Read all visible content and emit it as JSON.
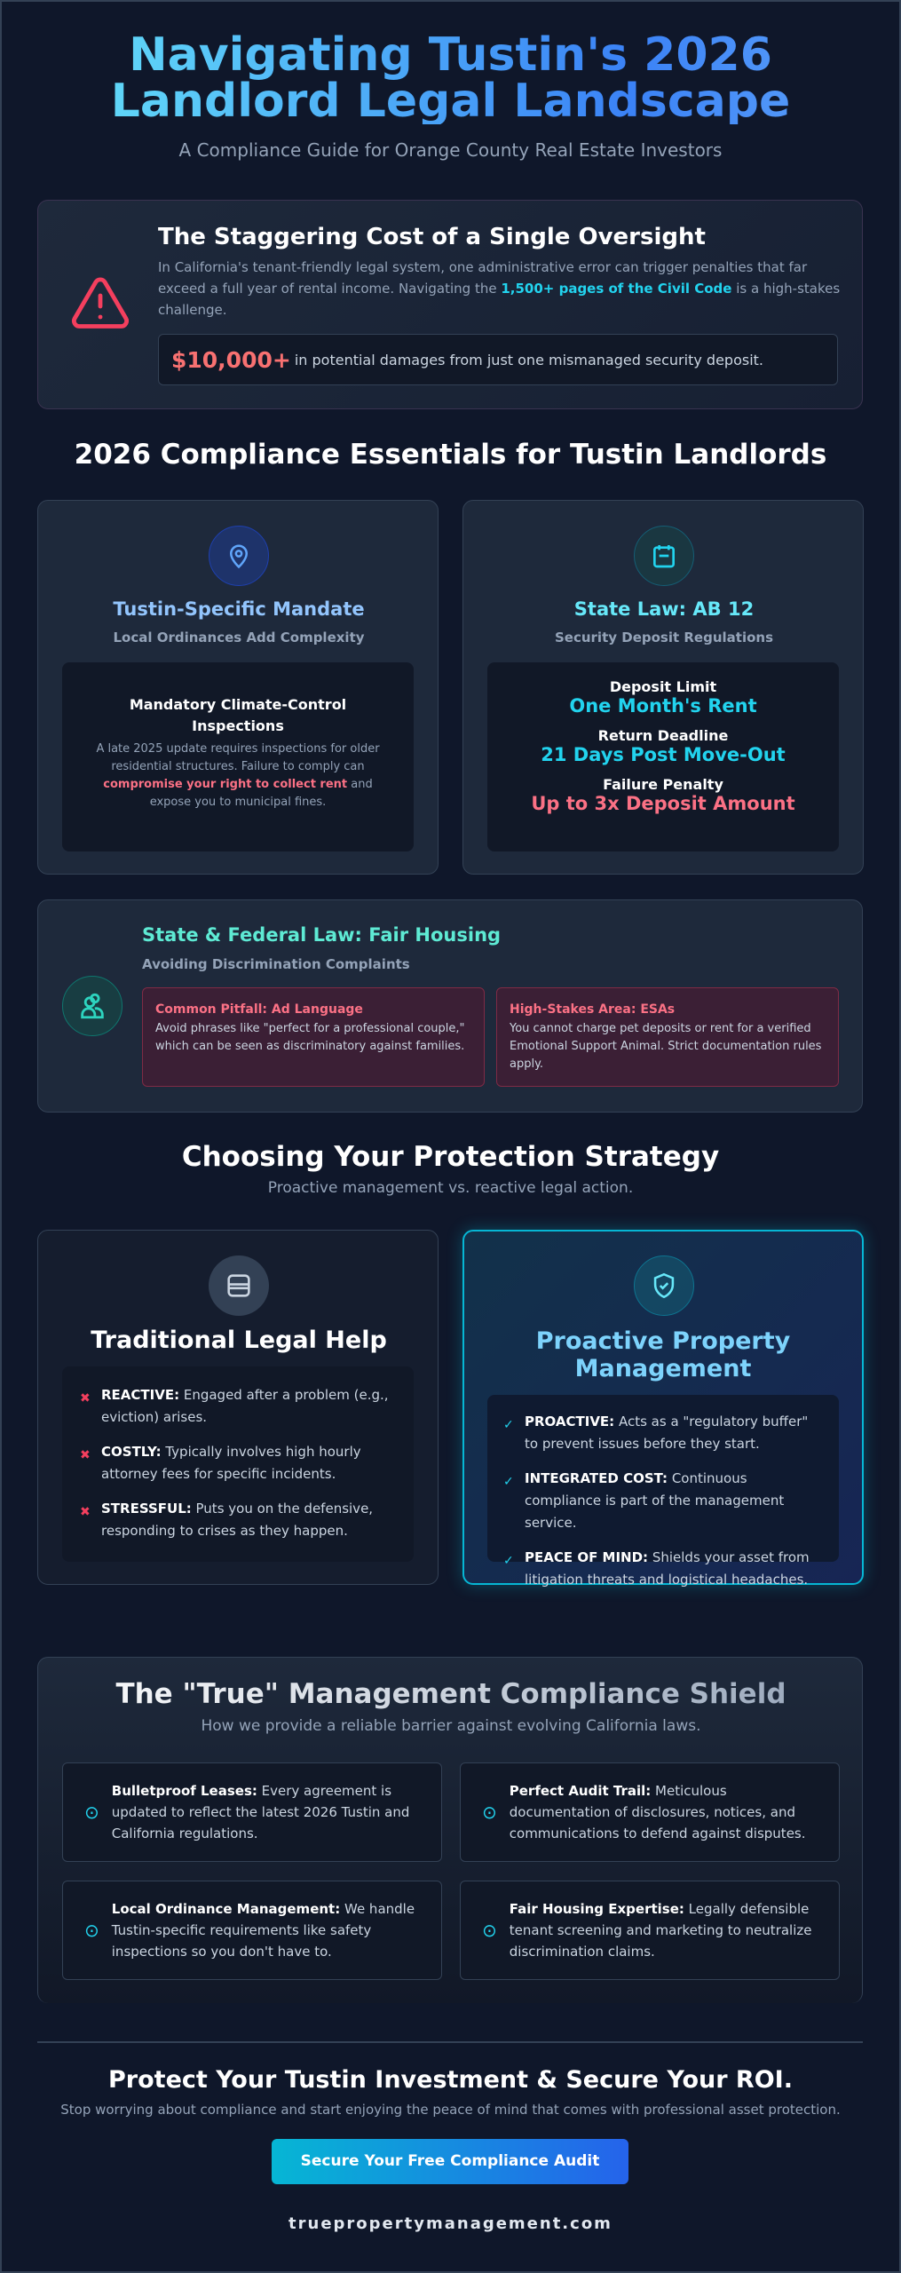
{
  "header": {
    "title_line1": "Navigating Tustin's 2026",
    "title_line2": "Landlord Legal Landscape",
    "subtitle": "A Compliance Guide for Orange County Real Estate Investors"
  },
  "alert": {
    "icon": "warning-triangle-icon",
    "title": "The Staggering Cost of a Single Oversight",
    "body_before": "In California's tenant-friendly legal system, one administrative error can trigger penalties that far exceed a full year of rental income. Navigating the ",
    "body_highlight": "1,500+ pages of the Civil Code",
    "body_after": " is a high-stakes challenge.",
    "damages_value": "$10,000+",
    "damages_text": " in potential damages from just one mismanaged security deposit."
  },
  "essentials": {
    "heading": "2026 Compliance Essentials for Tustin Landlords",
    "tustin": {
      "icon": "map-pin-icon",
      "title": "Tustin-Specific Mandate",
      "subtitle": "Local Ordinances Add Complexity",
      "box_title": "Mandatory Climate-Control Inspections",
      "body_before": "A late 2025 update requires inspections for older residential structures. Failure to comply can ",
      "body_highlight": "compromise your right to collect rent",
      "body_after": " and expose you to municipal fines."
    },
    "ab12": {
      "icon": "calendar-icon",
      "title": "State Law: AB 12",
      "subtitle": "Security Deposit Regulations",
      "rows": [
        {
          "label": "Deposit Limit",
          "value": "One Month's Rent"
        },
        {
          "label": "Return Deadline",
          "value": "21 Days Post Move-Out"
        },
        {
          "label": "Failure Penalty",
          "value": "Up to 3x Deposit Amount"
        }
      ]
    },
    "fair": {
      "icon": "users-icon",
      "title": "State & Federal Law: Fair Housing",
      "subtitle": "Avoiding Discrimination Complaints",
      "boxes": [
        {
          "title": "Common Pitfall: Ad Language",
          "text": "Avoid phrases like \"perfect for a professional couple,\" which can be seen as discriminatory against families."
        },
        {
          "title": "High-Stakes Area: ESAs",
          "text": "You cannot charge pet deposits or rent for a verified Emotional Support Animal. Strict documentation rules apply."
        }
      ]
    }
  },
  "strategy": {
    "heading": "Choosing Your Protection Strategy",
    "subtitle": "Proactive management vs. reactive legal action.",
    "traditional": {
      "icon": "archive-icon",
      "title": "Traditional Legal Help",
      "items": [
        {
          "label": "REACTIVE:",
          "text": " Engaged after a problem (e.g., eviction) arises."
        },
        {
          "label": "COSTLY:",
          "text": " Typically involves high hourly attorney fees for specific incidents."
        },
        {
          "label": "STRESSFUL:",
          "text": " Puts you on the defensive, responding to crises as they happen."
        }
      ]
    },
    "proactive": {
      "icon": "shield-check-icon",
      "title": "Proactive Property Management",
      "items": [
        {
          "label": "PROACTIVE:",
          "text": " Acts as a \"regulatory buffer\" to prevent issues before they start."
        },
        {
          "label": "INTEGRATED COST:",
          "text": " Continuous compliance is part of the management service."
        },
        {
          "label": "PEACE OF MIND:",
          "text": " Shields your asset from litigation threats and logistical headaches."
        }
      ]
    }
  },
  "shield": {
    "title": "The \"True\" Management Compliance Shield",
    "subtitle": "How we provide a reliable barrier against evolving California laws.",
    "features": [
      {
        "label": "Bulletproof Leases:",
        "text": " Every agreement is updated to reflect the latest 2026 Tustin and California regulations."
      },
      {
        "label": "Perfect Audit Trail:",
        "text": " Meticulous documentation of disclosures, notices, and communications to defend against disputes."
      },
      {
        "label": "Local Ordinance Management:",
        "text": " We handle Tustin-specific requirements like safety inspections so you don't have to."
      },
      {
        "label": "Fair Housing Expertise:",
        "text": " Legally defensible tenant screening and marketing to neutralize discrimination claims."
      }
    ]
  },
  "cta": {
    "title": "Protect Your Tustin Investment & Secure Your ROI.",
    "subtitle": "Stop worrying about compliance and start enjoying the peace of mind that comes with professional asset protection.",
    "button": "Secure Your Free Compliance Audit",
    "domain": "truepropertymanagement.com"
  },
  "colors": {
    "background": "#0f172a",
    "card": "#1e293b",
    "cyan": "#22d3ee",
    "red": "#f43f5e",
    "blue": "#60a5fa",
    "teal": "#5eead4"
  }
}
